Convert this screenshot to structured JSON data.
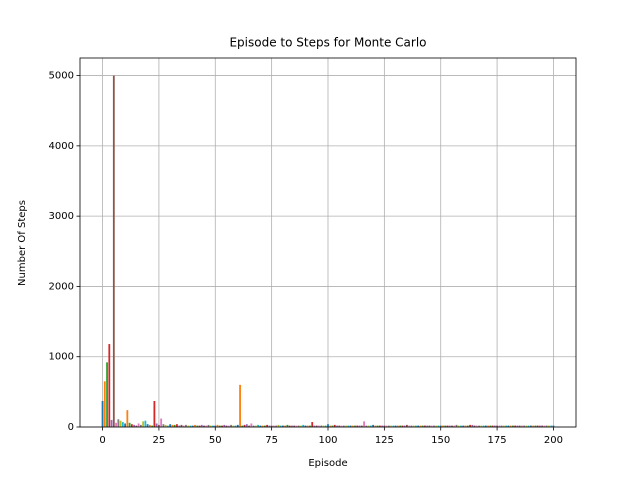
{
  "chart_data": {
    "type": "bar",
    "title": "Episode to Steps for Monte Carlo",
    "xlabel": "Episode",
    "ylabel": "Number Of Steps",
    "colors": [
      "#1f77b4",
      "#ff7f0e",
      "#2ca02c",
      "#d62728",
      "#9467bd",
      "#8c564b",
      "#e377c2",
      "#7f7f7f",
      "#bcbd22",
      "#17becf"
    ],
    "x": [
      0,
      1,
      2,
      3,
      4,
      5,
      6,
      7,
      8,
      9,
      10,
      11,
      12,
      13,
      14,
      15,
      16,
      17,
      18,
      19,
      20,
      21,
      22,
      23,
      24,
      25,
      26,
      27,
      28,
      29,
      30,
      31,
      32,
      33,
      34,
      35,
      36,
      37,
      38,
      39,
      40,
      41,
      42,
      43,
      44,
      45,
      46,
      47,
      48,
      49,
      50,
      51,
      52,
      53,
      54,
      55,
      56,
      57,
      58,
      59,
      60,
      61,
      62,
      63,
      64,
      65,
      66,
      67,
      68,
      69,
      70,
      71,
      72,
      73,
      74,
      75,
      76,
      77,
      78,
      79,
      80,
      81,
      82,
      83,
      84,
      85,
      86,
      87,
      88,
      89,
      90,
      91,
      92,
      93,
      94,
      95,
      96,
      97,
      98,
      99,
      100,
      101,
      102,
      103,
      104,
      105,
      106,
      107,
      108,
      109,
      110,
      111,
      112,
      113,
      114,
      115,
      116,
      117,
      118,
      119,
      120,
      121,
      122,
      123,
      124,
      125,
      126,
      127,
      128,
      129,
      130,
      131,
      132,
      133,
      134,
      135,
      136,
      137,
      138,
      139,
      140,
      141,
      142,
      143,
      144,
      145,
      146,
      147,
      148,
      149,
      150,
      151,
      152,
      153,
      154,
      155,
      156,
      157,
      158,
      159,
      160,
      161,
      162,
      163,
      164,
      165,
      166,
      167,
      168,
      169,
      170,
      171,
      172,
      173,
      174,
      175,
      176,
      177,
      178,
      179,
      180,
      181,
      182,
      183,
      184,
      185,
      186,
      187,
      188,
      189,
      190,
      191,
      192,
      193,
      194,
      195,
      196,
      197,
      198,
      199,
      200
    ],
    "values": [
      370,
      650,
      920,
      1180,
      100,
      5000,
      60,
      110,
      90,
      70,
      50,
      240,
      60,
      40,
      30,
      20,
      50,
      30,
      80,
      90,
      40,
      30,
      20,
      370,
      50,
      30,
      120,
      40,
      30,
      20,
      40,
      30,
      30,
      40,
      20,
      30,
      20,
      30,
      20,
      20,
      20,
      30,
      20,
      20,
      30,
      20,
      20,
      30,
      20,
      20,
      20,
      30,
      20,
      20,
      30,
      20,
      20,
      30,
      20,
      20,
      30,
      600,
      20,
      30,
      40,
      20,
      50,
      20,
      20,
      30,
      20,
      20,
      20,
      30,
      20,
      20,
      20,
      20,
      30,
      20,
      20,
      20,
      30,
      20,
      20,
      20,
      20,
      20,
      20,
      30,
      20,
      20,
      20,
      70,
      20,
      20,
      20,
      20,
      20,
      20,
      40,
      20,
      20,
      30,
      20,
      20,
      20,
      20,
      20,
      20,
      20,
      20,
      20,
      20,
      20,
      20,
      80,
      20,
      20,
      20,
      30,
      20,
      20,
      20,
      20,
      20,
      20,
      20,
      20,
      20,
      20,
      20,
      20,
      20,
      20,
      30,
      20,
      20,
      20,
      20,
      20,
      20,
      20,
      20,
      20,
      20,
      20,
      20,
      20,
      20,
      20,
      20,
      20,
      20,
      20,
      20,
      20,
      30,
      20,
      20,
      20,
      20,
      20,
      30,
      30,
      20,
      20,
      20,
      20,
      20,
      20,
      20,
      20,
      20,
      20,
      20,
      20,
      20,
      20,
      20,
      20,
      20,
      20,
      20,
      20,
      20,
      20,
      20,
      20,
      20,
      20,
      20,
      20,
      20,
      20,
      20,
      20,
      20,
      20,
      20,
      20
    ],
    "bar_width": 0.8,
    "xlim": [
      -10,
      210
    ],
    "xticks": [
      0,
      25,
      50,
      75,
      100,
      125,
      150,
      175,
      200
    ],
    "ylim": [
      0,
      5250
    ],
    "yticks": [
      0,
      1000,
      2000,
      3000,
      4000,
      5000
    ],
    "grid": true
  }
}
